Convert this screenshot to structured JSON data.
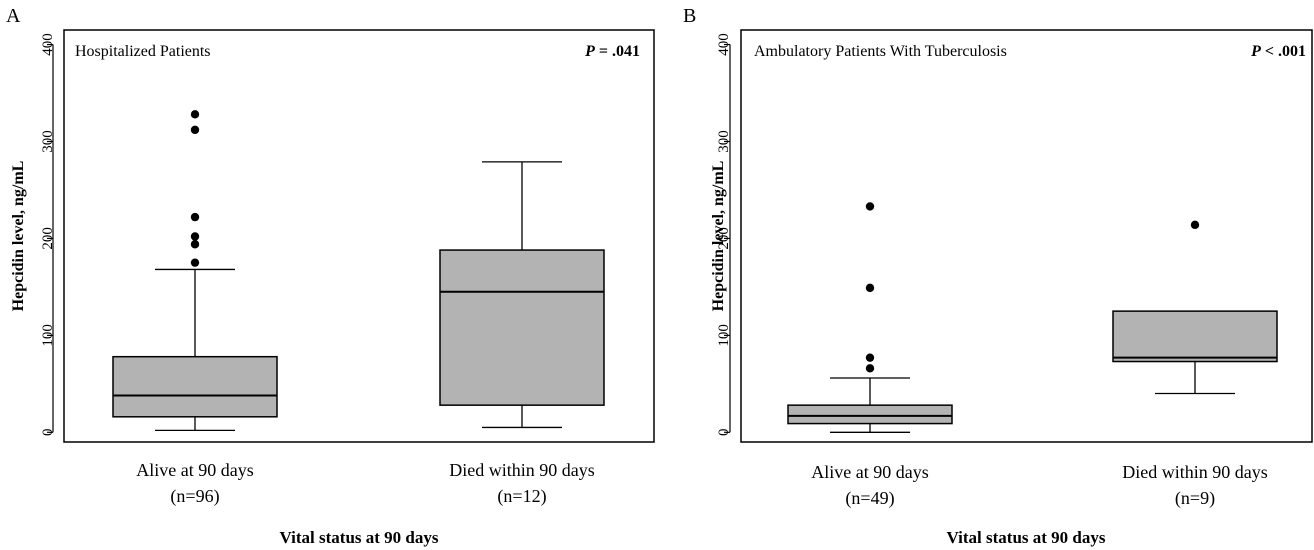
{
  "colors": {
    "box_fill": "#b3b3b3",
    "stroke": "#000000",
    "outlier": "#000000",
    "background": "#ffffff"
  },
  "chart_data": [
    {
      "type": "box",
      "panel_letter": "A",
      "title": "Hospitalized Patients",
      "p_label": "P",
      "p_value": " = .041",
      "ylabel": "Hepcidin level, ng/mL",
      "xlabel": "Vital status at 90 days",
      "ylim": [
        -10,
        415
      ],
      "yticks": [
        0,
        100,
        200,
        300,
        400
      ],
      "groups": [
        {
          "label": "Alive at 90 days",
          "n_label": "(n=96)",
          "min": 2,
          "q1": 16,
          "median": 38,
          "q3": 78,
          "max": 168,
          "outliers": [
            175,
            194,
            202,
            222,
            312,
            328
          ]
        },
        {
          "label": "Died within 90 days",
          "n_label": "(n=12)",
          "min": 5,
          "q1": 28,
          "median": 145,
          "q3": 188,
          "max": 279,
          "outliers": []
        }
      ]
    },
    {
      "type": "box",
      "panel_letter": "B",
      "title": "Ambulatory Patients With Tuberculosis",
      "p_label": "P",
      "p_value": " < .001",
      "ylabel": "Hepcidin level, ng/mL",
      "xlabel": "Vital status at 90 days",
      "ylim": [
        -10,
        415
      ],
      "yticks": [
        0,
        100,
        200,
        300,
        400
      ],
      "groups": [
        {
          "label": "Alive at 90 days",
          "n_label": "(n=49)",
          "min": 0,
          "q1": 9,
          "median": 17,
          "q3": 28,
          "max": 56,
          "outliers": [
            66,
            77,
            149,
            233
          ]
        },
        {
          "label": "Died within 90 days",
          "n_label": "(n=9)",
          "min": 40,
          "q1": 73,
          "median": 77,
          "q3": 125,
          "max": 125,
          "outliers": [
            214
          ]
        }
      ]
    }
  ]
}
